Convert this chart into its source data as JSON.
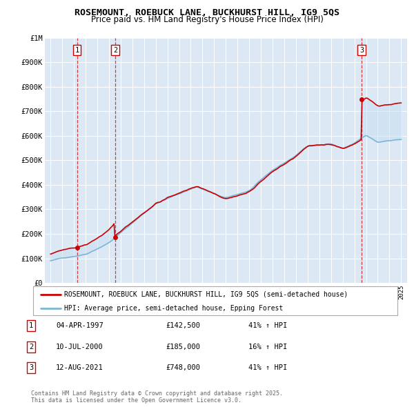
{
  "title": "ROSEMOUNT, ROEBUCK LANE, BUCKHURST HILL, IG9 5QS",
  "subtitle": "Price paid vs. HM Land Registry's House Price Index (HPI)",
  "legend_line1": "ROSEMOUNT, ROEBUCK LANE, BUCKHURST HILL, IG9 5QS (semi-detached house)",
  "legend_line2": "HPI: Average price, semi-detached house, Epping Forest",
  "footer": "Contains HM Land Registry data © Crown copyright and database right 2025.\nThis data is licensed under the Open Government Licence v3.0.",
  "sale_color": "#cc0000",
  "hpi_color": "#7ab6d8",
  "fill_color": "#c8dff0",
  "background_color": "#dce9f5",
  "plot_bg_color": "#dce9f5",
  "ylim": [
    0,
    1000000
  ],
  "yticks": [
    0,
    100000,
    200000,
    300000,
    400000,
    500000,
    600000,
    700000,
    800000,
    900000,
    1000000
  ],
  "ytick_labels": [
    "£0",
    "£100K",
    "£200K",
    "£300K",
    "£400K",
    "£500K",
    "£600K",
    "£700K",
    "£800K",
    "£900K",
    "£1M"
  ],
  "sales": [
    {
      "date_x": 1997.27,
      "price": 142500,
      "label": "1"
    },
    {
      "date_x": 2000.53,
      "price": 185000,
      "label": "2"
    },
    {
      "date_x": 2021.62,
      "price": 748000,
      "label": "3"
    }
  ],
  "sale_table": [
    {
      "num": "1",
      "date": "04-APR-1997",
      "price": "£142,500",
      "change": "41% ↑ HPI"
    },
    {
      "num": "2",
      "date": "10-JUL-2000",
      "price": "£185,000",
      "change": "16% ↑ HPI"
    },
    {
      "num": "3",
      "date": "12-AUG-2021",
      "price": "£748,000",
      "change": "41% ↑ HPI"
    }
  ],
  "xmin": 1994.5,
  "xmax": 2025.5
}
